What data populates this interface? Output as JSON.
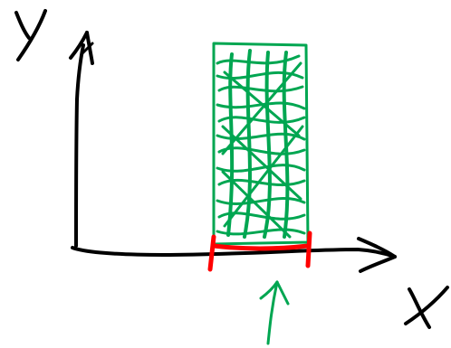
{
  "diagram": {
    "y_label": "y",
    "x_label": "x"
  },
  "colors": {
    "ink": "#000000",
    "bar_fill": "#00a651",
    "interval": "#ff0000",
    "arrow": "#00a651",
    "background": "#ffffff"
  }
}
